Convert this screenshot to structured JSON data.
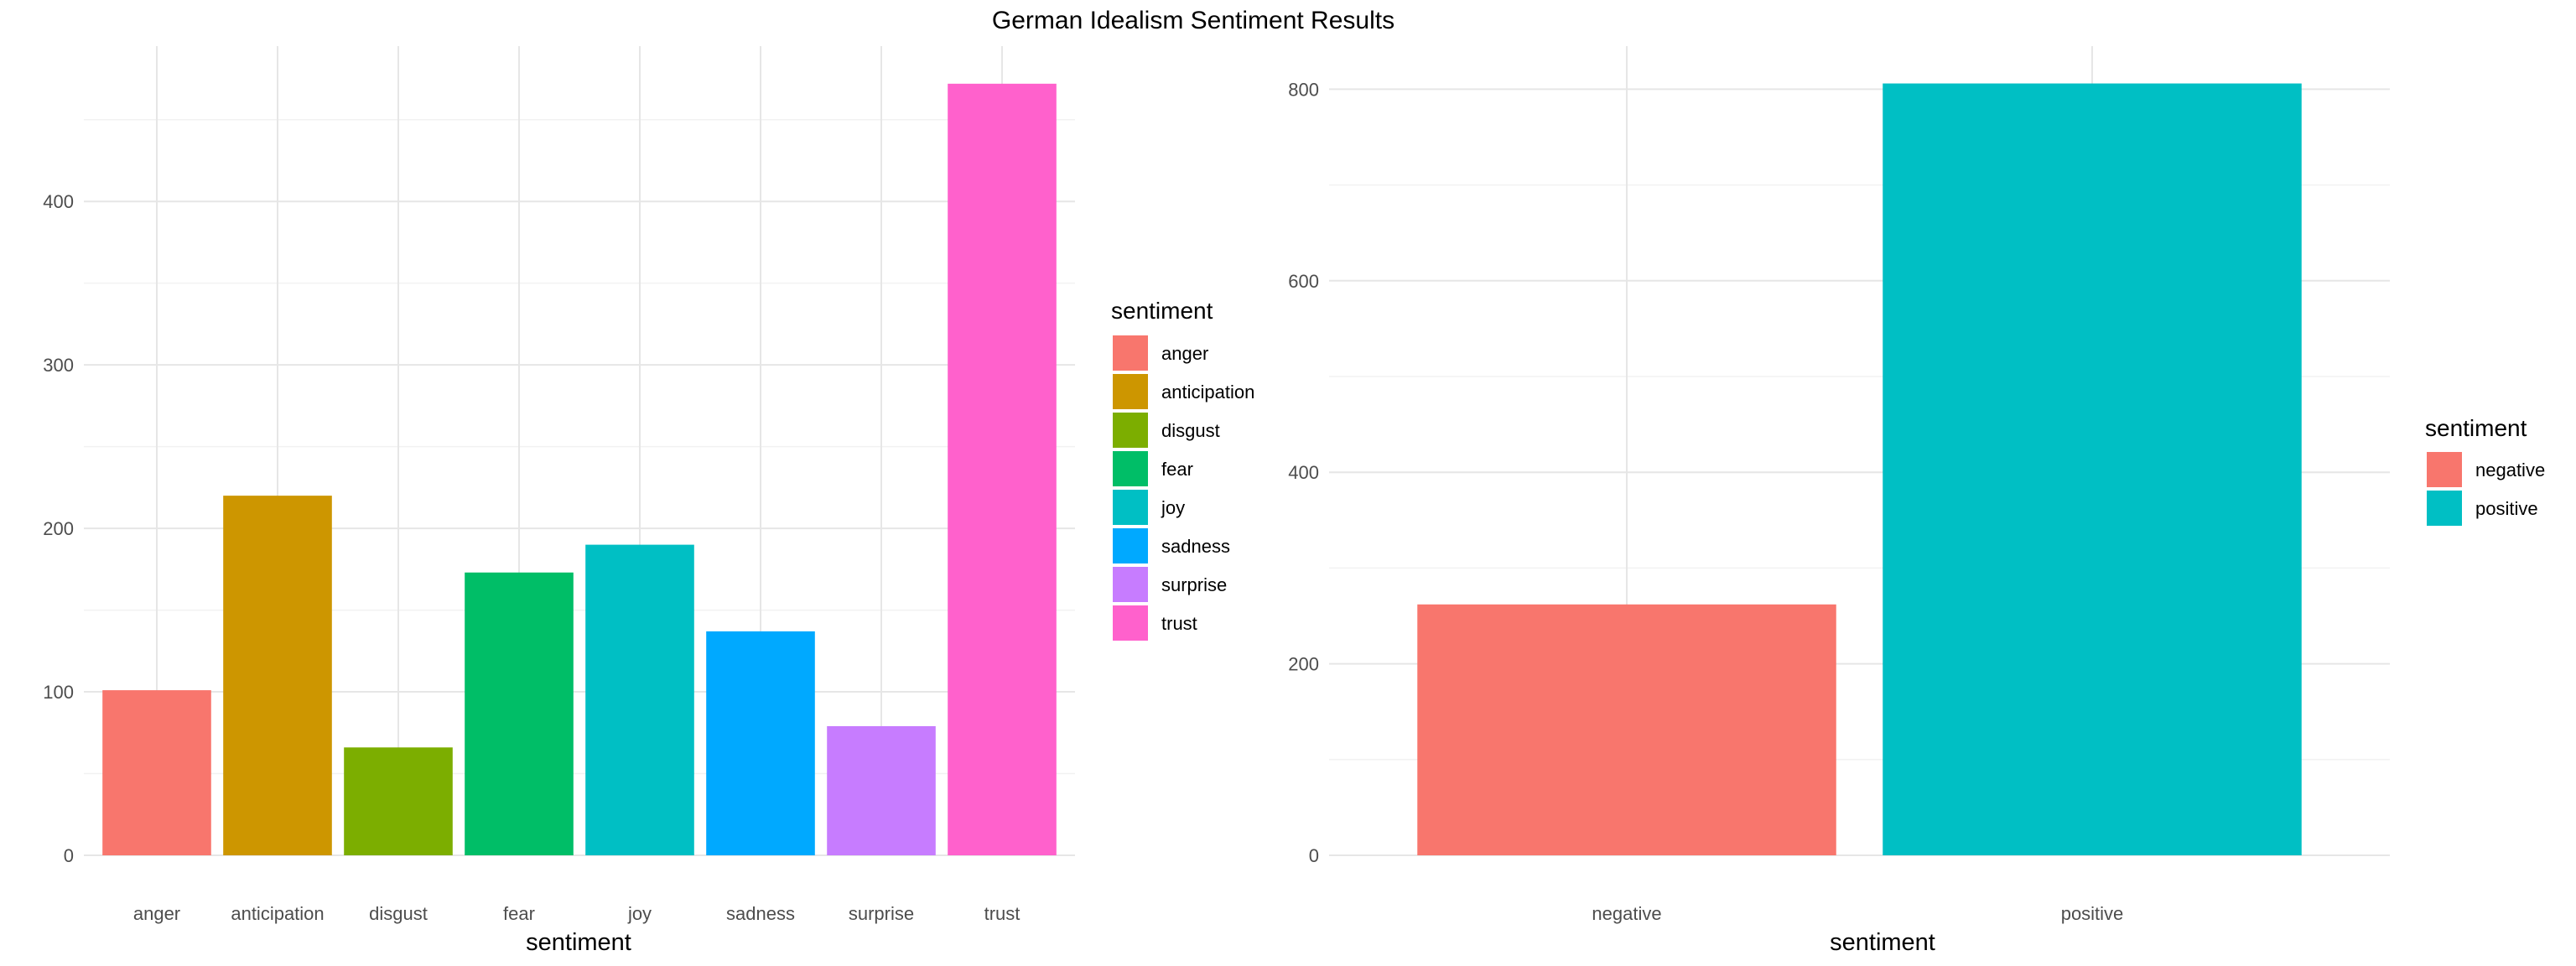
{
  "title": "German Idealism Sentiment Results",
  "chart_data": [
    {
      "type": "bar",
      "xlabel": "sentiment",
      "ylabel": "",
      "categories": [
        "anger",
        "anticipation",
        "disgust",
        "fear",
        "joy",
        "sadness",
        "surprise",
        "trust"
      ],
      "values": [
        101,
        220,
        66,
        173,
        190,
        137,
        79,
        472
      ],
      "colors": [
        "#F8766D",
        "#CD9600",
        "#7CAE00",
        "#00BE67",
        "#00BFC4",
        "#00A9FF",
        "#C77CFF",
        "#FF61CC"
      ],
      "ylim": [
        0,
        495
      ],
      "yticks": [
        0,
        100,
        200,
        300,
        400
      ],
      "grid": true,
      "legend": {
        "title": "sentiment",
        "position": "right",
        "items": [
          "anger",
          "anticipation",
          "disgust",
          "fear",
          "joy",
          "sadness",
          "surprise",
          "trust"
        ]
      }
    },
    {
      "type": "bar",
      "xlabel": "sentiment",
      "ylabel": "",
      "categories": [
        "negative",
        "positive"
      ],
      "values": [
        262,
        806
      ],
      "colors": [
        "#F8766D",
        "#00BFC4"
      ],
      "ylim": [
        0,
        845
      ],
      "yticks": [
        0,
        200,
        400,
        600,
        800
      ],
      "grid": true,
      "legend": {
        "title": "sentiment",
        "position": "right",
        "items": [
          "negative",
          "positive"
        ]
      }
    }
  ]
}
